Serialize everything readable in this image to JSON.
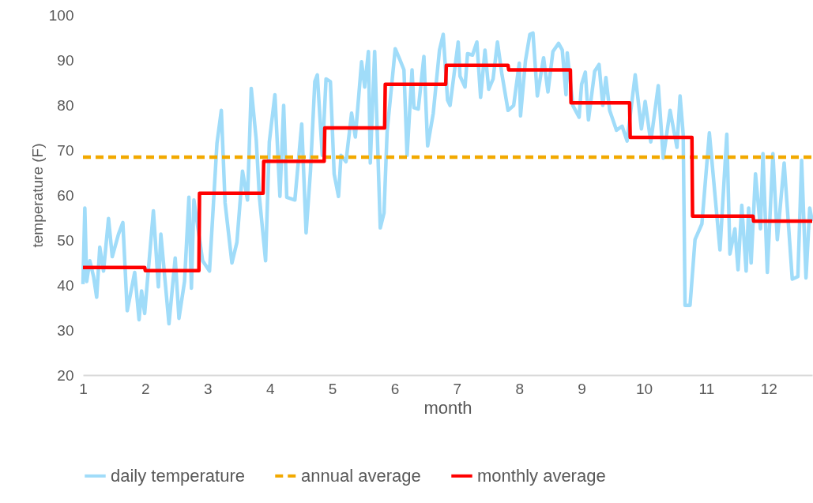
{
  "chart_data": {
    "type": "line",
    "xlabel": "month",
    "ylabel": "temperature (F)",
    "xlim": [
      1,
      12.7
    ],
    "xticks": [
      1,
      2,
      3,
      4,
      5,
      6,
      7,
      8,
      9,
      10,
      11,
      12
    ],
    "ylim": [
      20,
      100
    ],
    "yticks": [
      20,
      30,
      40,
      50,
      60,
      70,
      80,
      90,
      100
    ],
    "grid": false,
    "legend": "bottom",
    "series": [
      {
        "name": "daily temperature",
        "color": "#a0dcf9",
        "line_style": "solid",
        "x": [
          1.0,
          1.03,
          1.06,
          1.11,
          1.17,
          1.22,
          1.27,
          1.33,
          1.41,
          1.47,
          1.57,
          1.64,
          1.71,
          1.83,
          1.9,
          1.94,
          1.99,
          2.13,
          2.21,
          2.25,
          2.38,
          2.48,
          2.54,
          2.63,
          2.7,
          2.74,
          2.78,
          2.92,
          3.03,
          3.15,
          3.22,
          3.28,
          3.39,
          3.47,
          3.56,
          3.64,
          3.7,
          3.78,
          3.83,
          3.93,
          3.99,
          4.08,
          4.16,
          4.22,
          4.27,
          4.4,
          4.51,
          4.58,
          4.65,
          4.72,
          4.76,
          4.84,
          4.9,
          4.97,
          5.03,
          5.1,
          5.14,
          5.22,
          5.31,
          5.37,
          5.47,
          5.52,
          5.58,
          5.61,
          5.68,
          5.77,
          5.83,
          5.88,
          6.01,
          6.09,
          6.15,
          6.2,
          6.28,
          6.31,
          6.38,
          6.47,
          6.53,
          6.62,
          6.72,
          6.78,
          6.85,
          6.89,
          7.02,
          7.05,
          7.13,
          7.17,
          7.25,
          7.32,
          7.38,
          7.45,
          7.51,
          7.58,
          7.65,
          7.72,
          7.82,
          7.91,
          8.0,
          8.02,
          8.1,
          8.17,
          8.22,
          8.29,
          8.39,
          8.46,
          8.54,
          8.63,
          8.69,
          8.75,
          8.77,
          8.86,
          8.96,
          9.0,
          9.06,
          9.11,
          9.21,
          9.28,
          9.34,
          9.39,
          9.45,
          9.56,
          9.65,
          9.73,
          9.86,
          9.96,
          10.02,
          10.11,
          10.23,
          10.31,
          10.42,
          10.53,
          10.58,
          10.63,
          10.66,
          10.74,
          10.82,
          10.93,
          11.05,
          11.22,
          11.33,
          11.38,
          11.46,
          11.51,
          11.57,
          11.64,
          11.68,
          11.72,
          11.79,
          11.87,
          11.91,
          11.98,
          12.07,
          12.14,
          12.25,
          12.38,
          12.47,
          12.53,
          12.6,
          12.66,
          12.7
        ],
        "values": [
          40.2,
          57.1,
          40.8,
          45.4,
          41.9,
          37.3,
          48.4,
          43.1,
          54.8,
          46.3,
          51.3,
          53.9,
          34.3,
          42.8,
          32.3,
          38.7,
          33.7,
          56.5,
          39.6,
          51.3,
          31.4,
          46.0,
          32.6,
          40.8,
          59.5,
          39.3,
          58.9,
          45.4,
          43.1,
          71.5,
          78.8,
          58.3,
          44.9,
          49.5,
          65.3,
          58.9,
          83.7,
          72.3,
          59.7,
          45.4,
          71.8,
          82.3,
          59.7,
          79.9,
          59.5,
          58.9,
          75.8,
          51.6,
          65.3,
          85.2,
          86.7,
          68.8,
          85.8,
          85.2,
          64.7,
          59.7,
          68.8,
          67.4,
          78.2,
          72.9,
          89.6,
          84.0,
          91.9,
          67.1,
          91.9,
          52.7,
          56.0,
          74.1,
          92.5,
          89.9,
          87.8,
          68.8,
          87.8,
          79.4,
          79.1,
          90.8,
          70.9,
          78.2,
          92.2,
          95.7,
          81.1,
          79.9,
          94.0,
          86.4,
          84.0,
          91.4,
          91.1,
          94.0,
          81.7,
          92.2,
          83.5,
          85.8,
          94.0,
          87.0,
          78.8,
          79.9,
          89.3,
          77.6,
          89.9,
          95.7,
          96.0,
          82.0,
          90.5,
          82.9,
          91.9,
          93.7,
          92.2,
          82.3,
          91.6,
          79.9,
          77.3,
          84.6,
          87.3,
          76.7,
          87.5,
          89.0,
          79.9,
          86.1,
          78.8,
          74.4,
          75.3,
          72.0,
          86.7,
          74.7,
          80.8,
          71.8,
          84.3,
          68.2,
          78.8,
          70.6,
          82.0,
          73.5,
          35.5,
          35.5,
          50.1,
          53.6,
          73.8,
          47.8,
          73.5,
          46.9,
          52.5,
          43.4,
          57.7,
          43.1,
          57.1,
          44.9,
          64.7,
          52.5,
          69.2,
          42.8,
          69.2,
          50.1,
          67.1,
          41.3,
          41.9,
          67.7,
          41.6,
          57.1,
          54.2
        ]
      },
      {
        "name": "annual average",
        "color": "#f2a900",
        "line_style": "dashed",
        "x": [
          1,
          12.7
        ],
        "values": [
          68.4,
          68.4
        ]
      },
      {
        "name": "monthly average",
        "color": "#ff0000",
        "line_style": "solid",
        "x": [
          1,
          1.99,
          2.0,
          2.86,
          2.87,
          3.89,
          3.9,
          4.87,
          4.88,
          5.84,
          5.85,
          6.82,
          6.83,
          7.82,
          7.83,
          8.82,
          8.83,
          9.77,
          9.78,
          10.77,
          10.78,
          11.75,
          11.76,
          12.7
        ],
        "values": [
          43.9,
          43.9,
          43.2,
          43.2,
          60.4,
          60.4,
          67.5,
          67.5,
          74.9,
          74.9,
          84.6,
          84.6,
          88.8,
          88.8,
          87.8,
          87.8,
          80.5,
          80.5,
          72.8,
          72.8,
          55.3,
          55.3,
          54.2,
          54.2
        ]
      }
    ]
  }
}
